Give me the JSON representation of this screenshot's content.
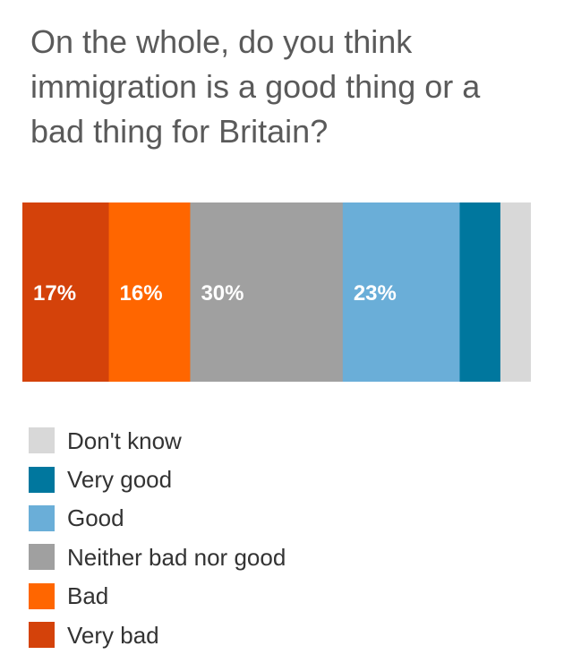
{
  "title": "On the whole, do you think immigration is a good thing or a bad thing for Britain?",
  "chart_data": {
    "type": "bar",
    "orientation": "horizontal-stacked",
    "title": "On the whole, do you think immigration is a good thing or a bad thing for Britain?",
    "unit": "%",
    "series": [
      {
        "name": "Very bad",
        "value": 17,
        "label": "17%",
        "color": "#d4420a"
      },
      {
        "name": "Bad",
        "value": 16,
        "label": "16%",
        "color": "#ff6600"
      },
      {
        "name": "Neither bad nor good",
        "value": 30,
        "label": "30%",
        "color": "#a0a0a0"
      },
      {
        "name": "Good",
        "value": 23,
        "label": "23%",
        "color": "#6aaed8"
      },
      {
        "name": "Very good",
        "value": 8,
        "label": "",
        "color": "#00779e"
      },
      {
        "name": "Don't know",
        "value": 6,
        "label": "",
        "color": "#d8d8d8"
      }
    ],
    "legend": {
      "placement": "bottom",
      "order": [
        "Don't know",
        "Very good",
        "Good",
        "Neither bad nor good",
        "Bad",
        "Very bad"
      ]
    }
  }
}
